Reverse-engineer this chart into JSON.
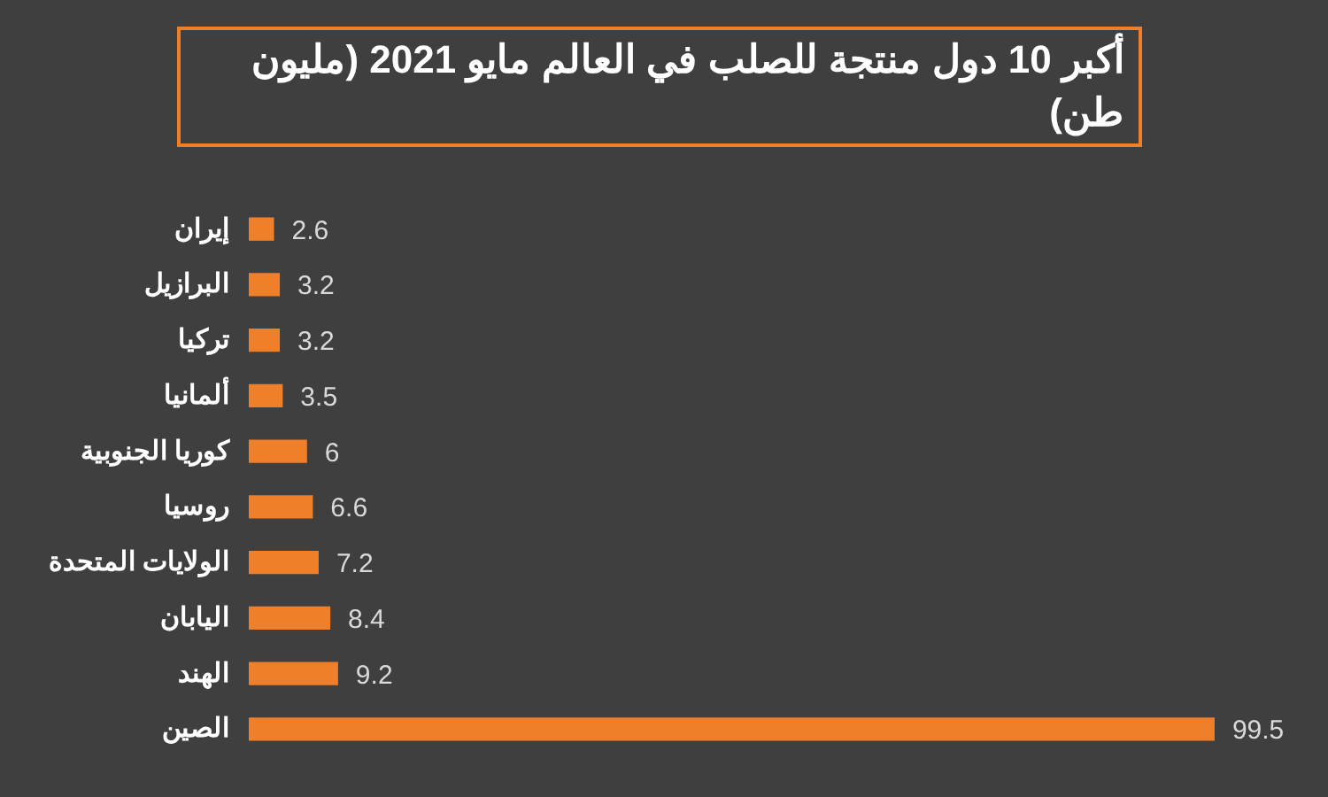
{
  "chart_data": {
    "type": "bar",
    "orientation": "horizontal",
    "title": "أكبر 10 دول منتجة للصلب في العالم مايو 2021  (مليون طن)",
    "categories": [
      "إيران",
      "البرازيل",
      "تركيا",
      "ألمانيا",
      "كوريا الجنوبية",
      "روسيا",
      "الولايات المتحدة",
      "اليابان",
      "الهند",
      "الصين"
    ],
    "values": [
      2.6,
      3.2,
      3.2,
      3.5,
      6,
      6.6,
      7.2,
      8.4,
      9.2,
      99.5
    ],
    "color": "#f07f2a",
    "data_labels": true,
    "grid": false
  }
}
